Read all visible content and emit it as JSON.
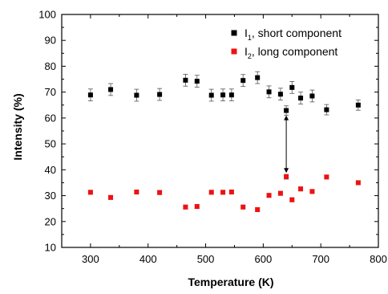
{
  "chart_data": {
    "type": "scatter",
    "xlabel": "Temperature (K)",
    "ylabel": "Intensity (%)",
    "xlim": [
      250,
      800
    ],
    "ylim": [
      10,
      100
    ],
    "x_ticks": [
      300,
      400,
      500,
      600,
      700,
      800
    ],
    "y_ticks": [
      10,
      20,
      30,
      40,
      50,
      60,
      70,
      80,
      90,
      100
    ],
    "grid": false,
    "legend_position": "top-right",
    "series": [
      {
        "name_main": "I",
        "name_sub": "1",
        "name_rest": ", short component",
        "color": "#000000",
        "marker": "square",
        "points": [
          {
            "x": 300,
            "y": 68.9,
            "err": 2.3
          },
          {
            "x": 335,
            "y": 71.0,
            "err": 2.3
          },
          {
            "x": 380,
            "y": 68.8,
            "err": 2.3
          },
          {
            "x": 420,
            "y": 69.1,
            "err": 2.3
          },
          {
            "x": 465,
            "y": 74.6,
            "err": 2.3
          },
          {
            "x": 485,
            "y": 74.2,
            "err": 2.3
          },
          {
            "x": 510,
            "y": 68.8,
            "err": 2.3
          },
          {
            "x": 530,
            "y": 68.9,
            "err": 2.3
          },
          {
            "x": 545,
            "y": 68.9,
            "err": 2.3
          },
          {
            "x": 565,
            "y": 74.5,
            "err": 2.3
          },
          {
            "x": 590,
            "y": 75.6,
            "err": 2.3
          },
          {
            "x": 610,
            "y": 70.1,
            "err": 2.3
          },
          {
            "x": 630,
            "y": 69.2,
            "err": 2.3
          },
          {
            "x": 640,
            "y": 62.9,
            "err": 1.8
          },
          {
            "x": 650,
            "y": 71.8,
            "err": 2.3
          },
          {
            "x": 665,
            "y": 67.7,
            "err": 2.3
          },
          {
            "x": 685,
            "y": 68.5,
            "err": 2.3
          },
          {
            "x": 710,
            "y": 63.2,
            "err": 2.0
          },
          {
            "x": 765,
            "y": 65.0,
            "err": 2.0
          }
        ]
      },
      {
        "name_main": "I",
        "name_sub": "2",
        "name_rest": ", long component",
        "color": "#ee1111",
        "marker": "square",
        "points": [
          {
            "x": 300,
            "y": 31.3,
            "err": 0.8
          },
          {
            "x": 335,
            "y": 29.3,
            "err": 0.8
          },
          {
            "x": 380,
            "y": 31.4,
            "err": 0.8
          },
          {
            "x": 420,
            "y": 31.2,
            "err": 0.8
          },
          {
            "x": 465,
            "y": 25.6,
            "err": 0.8
          },
          {
            "x": 485,
            "y": 25.8,
            "err": 0.8
          },
          {
            "x": 510,
            "y": 31.3,
            "err": 0.8
          },
          {
            "x": 530,
            "y": 31.3,
            "err": 0.8
          },
          {
            "x": 545,
            "y": 31.4,
            "err": 0.8
          },
          {
            "x": 565,
            "y": 25.6,
            "err": 0.8
          },
          {
            "x": 590,
            "y": 24.6,
            "err": 0.8
          },
          {
            "x": 610,
            "y": 30.1,
            "err": 0.8
          },
          {
            "x": 630,
            "y": 30.9,
            "err": 0.8
          },
          {
            "x": 640,
            "y": 37.3,
            "err": 1.0
          },
          {
            "x": 650,
            "y": 28.4,
            "err": 0.8
          },
          {
            "x": 665,
            "y": 32.6,
            "err": 0.8
          },
          {
            "x": 685,
            "y": 31.6,
            "err": 0.8
          },
          {
            "x": 710,
            "y": 37.2,
            "err": 0.8
          },
          {
            "x": 765,
            "y": 35.0,
            "err": 0.8
          }
        ]
      }
    ],
    "annotations": [
      {
        "type": "double-arrow",
        "x": 640,
        "y_from": 61.0,
        "y_to": 38.8
      }
    ]
  }
}
